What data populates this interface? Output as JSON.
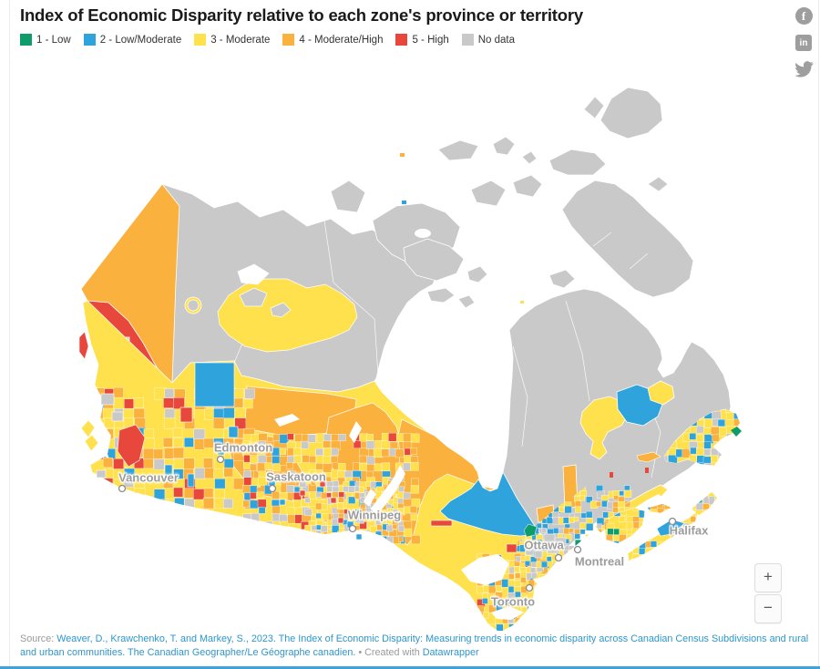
{
  "header": {
    "title": "Index of Economic Disparity relative to each zone's province or territory"
  },
  "legend": {
    "items": [
      {
        "label": "1 - Low",
        "color": "#0e9c6b",
        "key": "low"
      },
      {
        "label": "2 - Low/Moderate",
        "color": "#2fa3dc",
        "key": "low_moderate"
      },
      {
        "label": "3 - Moderate",
        "color": "#ffe14d",
        "key": "moderate"
      },
      {
        "label": "4 - Moderate/High",
        "color": "#fbb13e",
        "key": "moderate_high"
      },
      {
        "label": "5 - High",
        "color": "#e8483c",
        "key": "high"
      },
      {
        "label": "No data",
        "color": "#c9c9c9",
        "key": "no_data"
      }
    ]
  },
  "share": {
    "facebook_glyph": "f",
    "linkedin_glyph": "in",
    "icons": [
      "facebook-icon",
      "linkedin-icon",
      "twitter-icon"
    ]
  },
  "controls": {
    "zoom_in": "+",
    "zoom_out": "−"
  },
  "map": {
    "palette": {
      "low": "#0e9c6b",
      "low_moderate": "#2fa3dc",
      "moderate": "#ffe14d",
      "moderate_high": "#fbb13e",
      "high": "#e8483c",
      "no_data": "#c9c9c9"
    },
    "colors": {
      "accent_link": "#2d96cc",
      "city_label": "#9b9b9b",
      "icon_gray": "#9e9e9e",
      "bottom_bar": "#3fa3da"
    },
    "cities": [
      {
        "name": "Vancouver"
      },
      {
        "name": "Edmonton"
      },
      {
        "name": "Saskatoon"
      },
      {
        "name": "Winnipeg"
      },
      {
        "name": "Toronto"
      },
      {
        "name": "Ottawa"
      },
      {
        "name": "Montreal"
      },
      {
        "name": "Halifax"
      }
    ],
    "regions": [
      {
        "region": "Yukon",
        "category": "4 - Moderate/High"
      },
      {
        "region": "Southwest Yukon / Northern BC coast",
        "category": "5 - High"
      },
      {
        "region": "Northwest Territories",
        "category": "No data"
      },
      {
        "region": "Great Slave Lake area (NWT)",
        "category": "3 - Moderate"
      },
      {
        "region": "Nunavut",
        "category": "No data"
      },
      {
        "region": "Northeast BC",
        "category": "2 - Low/Moderate"
      },
      {
        "region": "BC Interior (Cariboo)",
        "category": "5 - High"
      },
      {
        "region": "Alberta / Saskatchewan north",
        "category": "4 - Moderate/High"
      },
      {
        "region": "Southern prairies",
        "category": "mixed 3/4 with scattered 1,2,5 and No data"
      },
      {
        "region": "Northern Manitoba / Northern Ontario",
        "category": "4 - Moderate/High"
      },
      {
        "region": "Northeastern Ontario / Baie-James Quebec",
        "category": "2 - Low/Moderate"
      },
      {
        "region": "Central Quebec (Caniapiscau)",
        "category": "3 - Moderate"
      },
      {
        "region": "Labrador West",
        "category": "2 - Low/Moderate"
      },
      {
        "region": "Northern Quebec (Nunavik)",
        "category": "No data"
      },
      {
        "region": "St. Lawrence valley",
        "category": "mixed 2/3/4"
      },
      {
        "region": "Maritimes",
        "category": "mixed 3/4 with 2"
      },
      {
        "region": "Newfoundland",
        "category": "mixed 2/3/4 and No data"
      }
    ]
  },
  "footer": {
    "source_prefix": "Source:",
    "source_link": "Weaver, D., Krawchenko, T. and Markey, S., 2023. The Index of Economic Disparity: Measuring trends in economic disparity across Canadian Census Subdivisions and rural and urban communities. The Canadian Geographer/Le Géographe canadien.",
    "separator": "•",
    "created_with": "Created with",
    "created_link": "Datawrapper"
  }
}
